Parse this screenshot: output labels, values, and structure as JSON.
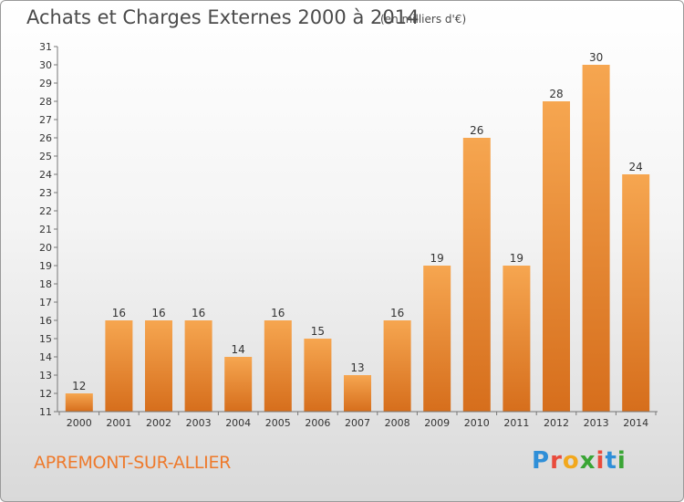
{
  "title": "Achats et Charges Externes 2000 à 2014",
  "unit": "(en milliers d'€)",
  "city": "APREMONT-SUR-ALLIER",
  "logo": {
    "letters": [
      "P",
      "r",
      "o",
      "x",
      "i",
      "t",
      "i"
    ],
    "colors": [
      "#2f8fd8",
      "#e94b3c",
      "#f2a81d",
      "#3aa535",
      "#e94b3c",
      "#2f8fd8",
      "#3aa535"
    ]
  },
  "colors": {
    "bar_top": "#f6a650",
    "bar_bottom": "#d66e1c",
    "text": "#4a4a4a",
    "city": "#ee7a2c"
  },
  "chart_data": {
    "type": "bar",
    "categories": [
      "2000",
      "2001",
      "2002",
      "2003",
      "2004",
      "2005",
      "2006",
      "2007",
      "2008",
      "2009",
      "2010",
      "2011",
      "2012",
      "2013",
      "2014"
    ],
    "values": [
      12,
      16,
      16,
      16,
      14,
      16,
      15,
      13,
      16,
      19,
      26,
      19,
      28,
      30,
      24
    ],
    "title": "Achats et Charges Externes 2000 à 2014",
    "ylim": [
      11,
      31
    ],
    "yticks": [
      11,
      12,
      13,
      14,
      15,
      16,
      17,
      18,
      19,
      20,
      21,
      22,
      23,
      24,
      25,
      26,
      27,
      28,
      29,
      30,
      31
    ],
    "grid": false,
    "legend": "none"
  }
}
